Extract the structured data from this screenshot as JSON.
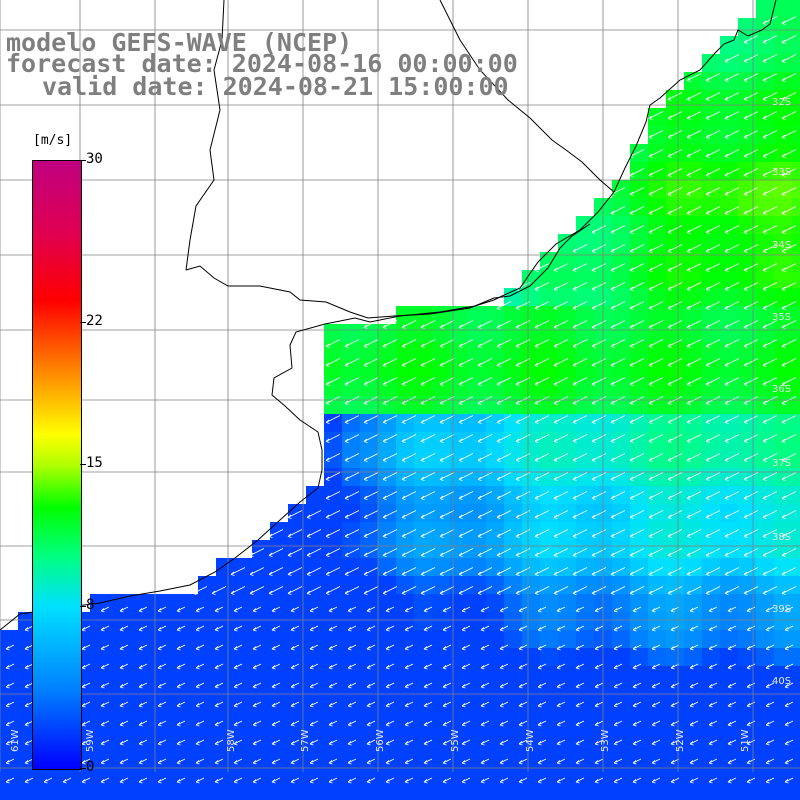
{
  "title": {
    "model": "modelo GEFS-WAVE (NCEP)",
    "forecast": "forecast date: 2024-08-16 00:00:00",
    "valid": "valid date: 2024-08-21 15:00:00"
  },
  "colorbar": {
    "unit": "[m/s]",
    "ticks": [
      "30",
      "22",
      "15",
      "8",
      "0"
    ],
    "tick_values": [
      30,
      22,
      15,
      8,
      0
    ],
    "range": [
      0,
      30
    ],
    "colors": [
      "#0000ff",
      "#0080ff",
      "#00e0ff",
      "#00ff80",
      "#00ff00",
      "#b0ff00",
      "#ffff00",
      "#ff8000",
      "#ff0000",
      "#e00050",
      "#c00080"
    ]
  },
  "map": {
    "lon_labels": [
      "61W",
      "59W",
      "58W",
      "57W",
      "56W",
      "55W",
      "54W",
      "53W",
      "52W",
      "51W"
    ],
    "lat_labels": [
      "32S",
      "33S",
      "34S",
      "35S",
      "36S",
      "37S",
      "38S",
      "39S",
      "40S"
    ],
    "land_color": "#ffffff",
    "grid_color": "#808080",
    "arrow_color": "#ffffff"
  }
}
